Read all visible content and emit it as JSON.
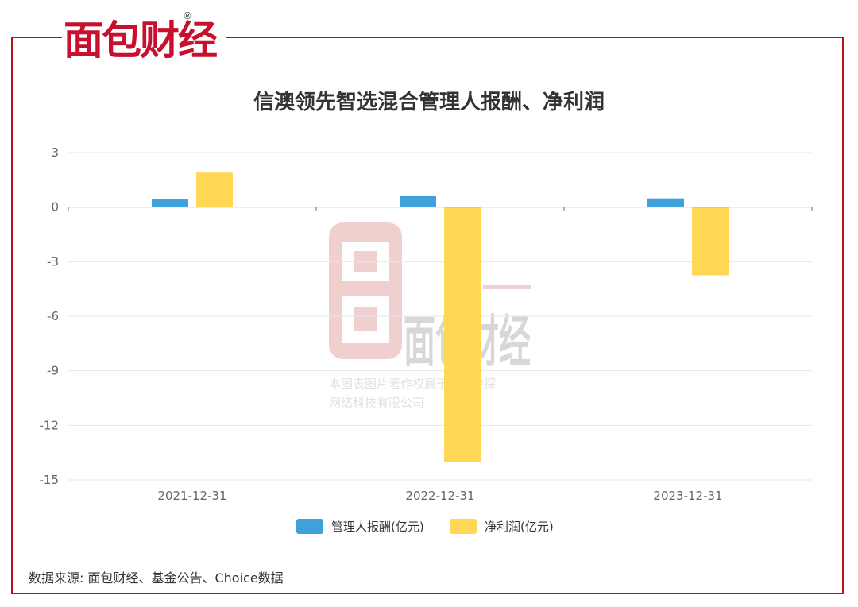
{
  "brand": {
    "logo_text": "面包财经",
    "registered": "®"
  },
  "watermark": {
    "logo_text": "面包财经",
    "registered": "®",
    "line1": "本图表图片著作权属于上海妙探",
    "line2": "网络科技有限公司"
  },
  "source_note": "数据来源: 面包财经、基金公告、Choice数据",
  "chart_data": {
    "type": "bar",
    "title": "信澳领先智选混合管理人报酬、净利润",
    "categories": [
      "2021-12-31",
      "2022-12-31",
      "2023-12-31"
    ],
    "series": [
      {
        "name": "管理人报酬(亿元)",
        "values": [
          0.42,
          0.6,
          0.48
        ],
        "color": "#3fa0dc"
      },
      {
        "name": "净利润(亿元)",
        "values": [
          1.9,
          -14.0,
          -3.75
        ],
        "color": "#ffd656"
      }
    ],
    "y_ticks": [
      3,
      0,
      -3,
      -6,
      -9,
      -12,
      -15
    ],
    "ylim": [
      -15,
      3
    ],
    "grid": true,
    "legend_position": "bottom"
  }
}
